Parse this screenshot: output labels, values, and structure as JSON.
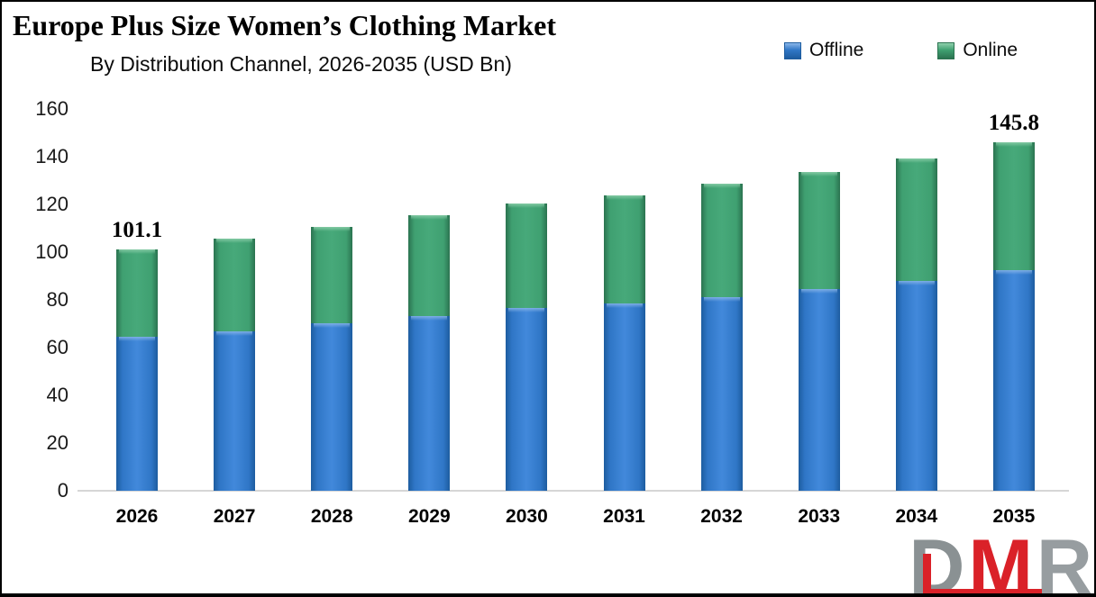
{
  "chart_data": {
    "type": "bar",
    "stacked": true,
    "title": "Europe Plus Size Women’s Clothing Market",
    "subtitle": "By Distribution Channel, 2026-2035 (USD Bn)",
    "xlabel": "",
    "ylabel": "",
    "unit": "USD Bn",
    "categories": [
      "2026",
      "2027",
      "2028",
      "2029",
      "2030",
      "2031",
      "2032",
      "2033",
      "2034",
      "2035"
    ],
    "series": [
      {
        "name": "Offline",
        "color": "#2F76C6",
        "center": "#4289DB",
        "edge": "#1D5C9F",
        "highlight": "#8AB6E9",
        "values": [
          64.3,
          66.6,
          70.1,
          73.2,
          76.4,
          78.5,
          81.1,
          84.4,
          88.0,
          92.5
        ]
      },
      {
        "name": "Online",
        "color": "#3FA071",
        "center": "#47A97A",
        "edge": "#2B7350",
        "highlight": "#8FD0AC",
        "values": [
          36.8,
          38.8,
          40.3,
          42.3,
          43.9,
          45.1,
          47.5,
          49.2,
          51.1,
          53.3
        ]
      }
    ],
    "totals": [
      101.1,
      105.4,
      110.4,
      115.5,
      120.3,
      123.6,
      128.6,
      133.6,
      139.1,
      145.8
    ],
    "bar_labels": [
      "101.1",
      null,
      null,
      null,
      null,
      null,
      null,
      null,
      null,
      "145.8"
    ],
    "y_ticks": [
      0,
      20,
      40,
      60,
      80,
      100,
      120,
      140,
      160
    ],
    "ylim": [
      0,
      160
    ],
    "grid": false,
    "legend_position": "top-right"
  },
  "logo": {
    "letters": [
      "D",
      "M",
      "R"
    ]
  }
}
